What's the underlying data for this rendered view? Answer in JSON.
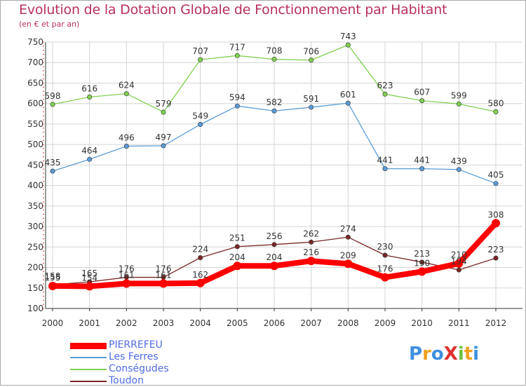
{
  "title": "Evolution de la Dotation Globale de Fonctionnement par Habitant",
  "subtitle": "(en € et par an)",
  "logo_text": "ProXiti",
  "chart_data": {
    "type": "line",
    "x": [
      "2000",
      "2001",
      "2002",
      "2003",
      "2004",
      "2005",
      "2006",
      "2007",
      "2008",
      "2009",
      "2010",
      "2011",
      "2012"
    ],
    "ylim": [
      100,
      750
    ],
    "yticks": [
      100,
      150,
      200,
      250,
      300,
      350,
      400,
      450,
      500,
      550,
      600,
      650,
      700,
      750
    ],
    "grid": true,
    "legend_position": "bottom-left",
    "series": [
      {
        "name": "PIERREFEU",
        "color": "#ff0000",
        "values": [
          155,
          154,
          161,
          161,
          162,
          204,
          204,
          216,
          209,
          176,
          190,
          210,
          308
        ],
        "labels": [
          "155",
          "154",
          "161",
          "161",
          "162",
          "204",
          "204",
          "216",
          "209",
          "176",
          "190",
          "210",
          "308"
        ]
      },
      {
        "name": "Les Ferres",
        "color": "#5b9bd5",
        "values": [
          435,
          464,
          496,
          497,
          549,
          594,
          582,
          591,
          601,
          441,
          441,
          439,
          405
        ],
        "labels": [
          "435",
          "464",
          "496",
          "497",
          "549",
          "594",
          "582",
          "591",
          "601",
          "441",
          "441",
          "439",
          "405"
        ]
      },
      {
        "name": "Conségudes",
        "color": "#80d050",
        "values": [
          598,
          616,
          624,
          579,
          707,
          717,
          708,
          706,
          743,
          623,
          607,
          599,
          580
        ],
        "labels": [
          "598",
          "616",
          "624",
          "579",
          "707",
          "717",
          "708",
          "706",
          "743",
          "623",
          "607",
          "599",
          "580"
        ]
      },
      {
        "name": "Toudon",
        "color": "#7a2727",
        "values": [
          158,
          165,
          176,
          176,
          224,
          251,
          256,
          262,
          274,
          230,
          213,
          194,
          223
        ],
        "labels": [
          "158",
          "165",
          "176",
          "176",
          "224",
          "251",
          "256",
          "262",
          "274",
          "230",
          "213",
          "194",
          "223"
        ]
      }
    ]
  }
}
